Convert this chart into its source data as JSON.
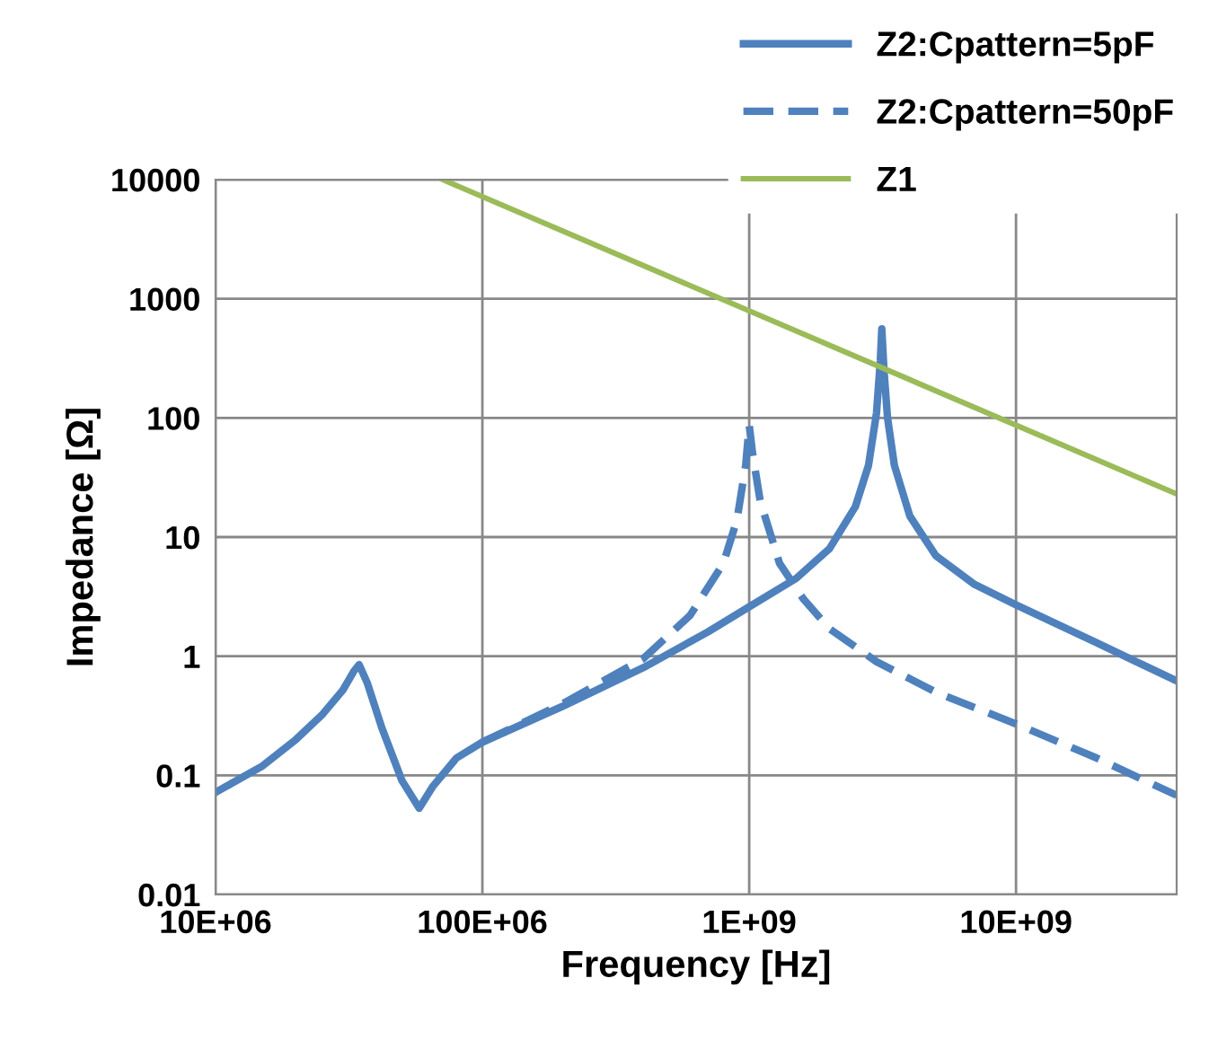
{
  "chart_data": {
    "type": "line",
    "xlabel": "Frequency [Hz]",
    "ylabel": "Impedance [Ω]",
    "log": "xy",
    "grid": true,
    "legend": "top right",
    "marker": "none",
    "xlim": [
      10000000.0,
      40000000000.0
    ],
    "xticks": [
      {
        "value": 10000000.0,
        "label": "10E+06"
      },
      {
        "value": 100000000.0,
        "label": "100E+06"
      },
      {
        "value": 1000000000.0,
        "label": "1E+09"
      },
      {
        "value": 10000000000.0,
        "label": "10E+09"
      }
    ],
    "ylim": [
      0.01,
      10000
    ],
    "yticks": [
      0.01,
      0.1,
      1,
      10,
      100,
      1000,
      10000
    ],
    "series": [
      {
        "name": "Z2:Cpattern=5pF",
        "color": "#4f81bd",
        "line_style": "solid",
        "x": [
          10000000.0,
          15000000.0,
          20000000.0,
          25000000.0,
          30000000.0,
          33000000.0,
          34500000.0,
          37000000.0,
          42000000.0,
          50000000.0,
          58000000.0,
          65000000.0,
          80000000.0,
          100000000.0,
          200000000.0,
          400000000.0,
          700000000.0,
          1000000000.0,
          1500000000.0,
          2000000000.0,
          2500000000.0,
          2800000000.0,
          3000000000.0,
          3100000000.0,
          3140000000.0,
          3200000000.0,
          3300000000.0,
          3500000000.0,
          4000000000.0,
          5000000000.0,
          7000000000.0,
          10000000000.0,
          20000000000.0,
          40000000000.0
        ],
        "values": [
          0.072,
          0.12,
          0.2,
          0.32,
          0.52,
          0.75,
          0.85,
          0.6,
          0.25,
          0.09,
          0.053,
          0.08,
          0.14,
          0.19,
          0.38,
          0.8,
          1.6,
          2.6,
          4.5,
          8,
          18,
          40,
          110,
          300,
          560,
          250,
          100,
          40,
          15,
          7,
          4,
          2.7,
          1.3,
          0.62
        ]
      },
      {
        "name": "Z2:Cpattern=50pF",
        "color": "#4f81bd",
        "line_style": "dashed",
        "x": [
          100000000.0,
          200000000.0,
          400000000.0,
          600000000.0,
          800000000.0,
          900000000.0,
          970000000.0,
          1000000000.0,
          1030000000.0,
          1100000000.0,
          1300000000.0,
          1600000000.0,
          2000000000.0,
          3000000000.0,
          5000000000.0,
          10000000000.0,
          20000000000.0,
          40000000000.0
        ],
        "values": [
          0.19,
          0.4,
          0.95,
          2.2,
          6,
          14,
          40,
          87,
          50,
          20,
          6,
          3,
          1.7,
          0.9,
          0.5,
          0.27,
          0.14,
          0.068
        ]
      },
      {
        "name": "Z1",
        "color": "#9bbb59",
        "line_style": "solid",
        "x": [
          71000000.0,
          40000000000.0
        ],
        "values": [
          10000,
          23
        ]
      }
    ]
  }
}
